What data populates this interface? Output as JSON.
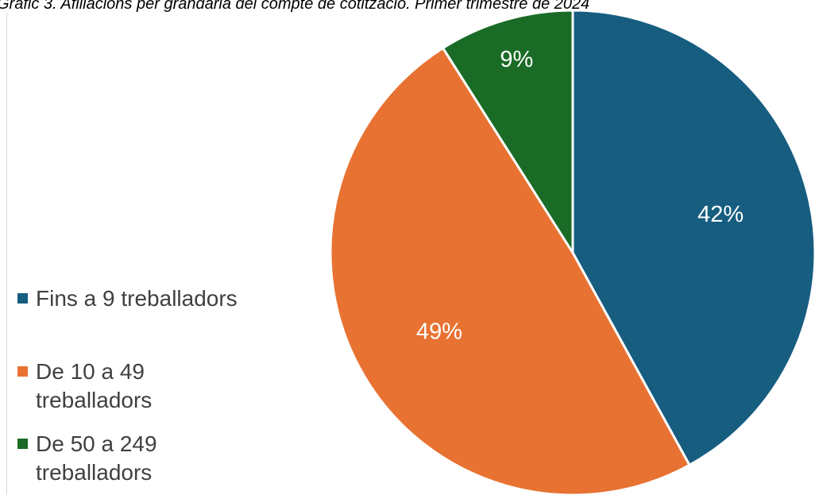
{
  "chart_data": {
    "type": "pie",
    "title": "Gràfic 3. Afiliacions per grandària del compte de cotització. Primer trimestre de 2024",
    "slices": [
      {
        "name": "Fins a 9 treballadors",
        "value": 42,
        "label": "42%",
        "color": "#175d80"
      },
      {
        "name": "De 10 a 49 treballadors",
        "value": 49,
        "label": "49%",
        "color": "#e87232"
      },
      {
        "name": "De 50 a 249 treballadors",
        "value": 9,
        "label": "9%",
        "color": "#1a6b26"
      }
    ],
    "legend_position": "left"
  }
}
